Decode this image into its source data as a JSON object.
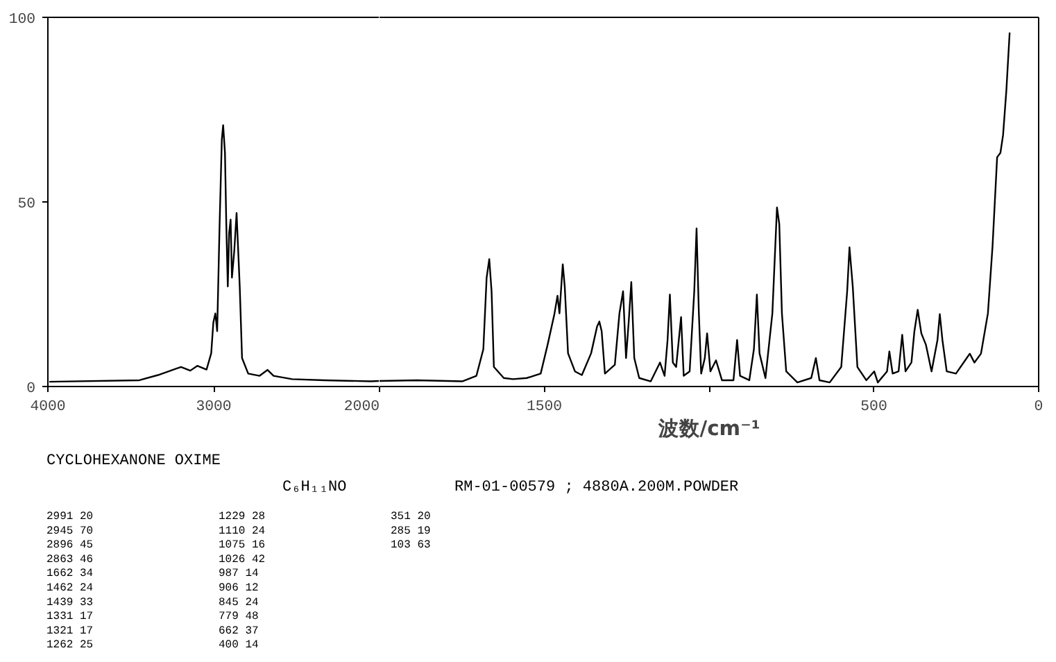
{
  "chart_data": [
    {
      "type": "line",
      "color": "#000000",
      "xlim": [
        4000,
        2000
      ],
      "xticks": [
        4000,
        3000,
        2000
      ],
      "ylim": [
        0,
        100
      ],
      "yticks": [
        0,
        50,
        100
      ],
      "x": [
        3992,
        3448,
        3336,
        3197,
        3141,
        3099,
        3043,
        3015,
        3002,
        2990,
        2979,
        2965,
        2951,
        2943,
        2932,
        2924,
        2915,
        2907,
        2898,
        2890,
        2876,
        2862,
        2851,
        2843,
        2829,
        2792,
        2723,
        2675,
        2639,
        2527,
        2332,
        2053,
        2000
      ],
      "values": [
        1.3,
        1.7,
        3.1,
        5.3,
        4.3,
        5.6,
        4.6,
        9.0,
        17.4,
        19.8,
        15.0,
        42.8,
        66.9,
        70.8,
        63.3,
        44.0,
        27.1,
        41.5,
        45.2,
        29.5,
        36.7,
        47.0,
        35.5,
        27.1,
        7.7,
        3.5,
        2.9,
        4.5,
        2.9,
        2.0,
        1.7,
        1.4,
        1.5
      ],
      "annotations": [
        "CYCLOHEXANONE OXIME",
        "C₆H₁₁NO",
        "RM-01-00579 ; 4880A.200M.POWDER",
        "2991    20",
        "2945    70",
        "2896    45",
        "2863    46",
        "1662    34",
        "1462    24",
        "1439    33",
        "1331    17",
        "1321    17",
        "1262    25",
        "1229    28",
        "1110    24",
        "1075    16",
        "1026    42",
        " 987    14",
        " 906    12",
        " 845    24",
        " 779    48",
        " 662    37",
        " 400    14",
        " 351    20",
        " 285    19",
        " 103    63"
      ]
    },
    {
      "type": "line",
      "color": "#000000",
      "xlabel": "波数/cm⁻¹",
      "xlim": [
        2000,
        0
      ],
      "xticks": [
        {
          "value": 2000,
          "label": null
        },
        1500,
        {
          "value": 1000,
          "label": null
        },
        500,
        0
      ],
      "ylim": [
        0,
        100
      ],
      "tick_labels": "x",
      "x": [
        2000,
        1887,
        1749,
        1706,
        1685,
        1675,
        1667,
        1660,
        1653,
        1623,
        1595,
        1553,
        1511,
        1490,
        1469,
        1460,
        1454,
        1444,
        1438,
        1428,
        1407,
        1386,
        1358,
        1340,
        1333,
        1326,
        1316,
        1286,
        1272,
        1261,
        1252,
        1244,
        1236,
        1227,
        1212,
        1177,
        1149,
        1135,
        1126,
        1119,
        1110,
        1100,
        1085,
        1077,
        1059,
        1045,
        1038,
        1031,
        1024,
        1013,
        1006,
        996,
        979,
        961,
        926,
        915,
        906,
        878,
        864,
        855,
        847,
        829,
        808,
        794,
        787,
        779,
        766,
        732,
        690,
        676,
        665,
        634,
        599,
        581,
        574,
        564,
        550,
        523,
        499,
        488,
        460,
        453,
        443,
        425,
        414,
        404,
        386,
        377,
        367,
        356,
        342,
        325,
        307,
        300,
        292,
        279,
        251,
        223,
        209,
        195,
        175,
        154,
        140,
        126,
        116,
        108,
        98,
        88
      ],
      "values": [
        1.5,
        1.7,
        1.4,
        2.9,
        10.1,
        29.5,
        34.5,
        25.8,
        5.3,
        2.3,
        2.0,
        2.3,
        3.5,
        11.3,
        19.8,
        24.6,
        19.8,
        33.1,
        27.1,
        9.0,
        4.1,
        3.1,
        9.0,
        16.2,
        17.6,
        15.0,
        3.5,
        5.9,
        19.8,
        25.8,
        7.7,
        17.4,
        28.3,
        7.7,
        2.3,
        1.4,
        6.5,
        2.9,
        12.6,
        24.9,
        6.5,
        5.3,
        18.8,
        2.9,
        4.1,
        25.8,
        42.8,
        19.8,
        3.5,
        7.7,
        14.4,
        4.1,
        7.1,
        1.7,
        1.7,
        12.6,
        2.9,
        1.7,
        10.1,
        24.9,
        9.0,
        2.3,
        19.8,
        48.5,
        44.0,
        19.8,
        4.1,
        1.1,
        2.3,
        7.7,
        1.7,
        1.1,
        5.3,
        25.8,
        37.7,
        27.0,
        5.3,
        1.7,
        4.1,
        1.1,
        4.1,
        9.5,
        3.5,
        4.1,
        14.0,
        4.1,
        6.5,
        15.0,
        20.8,
        14.4,
        11.3,
        4.1,
        12.6,
        19.6,
        12.6,
        4.1,
        3.5,
        7.1,
        8.9,
        6.5,
        8.9,
        19.8,
        37.9,
        62.1,
        63.3,
        68.1,
        80.2,
        95.9
      ]
    }
  ]
}
